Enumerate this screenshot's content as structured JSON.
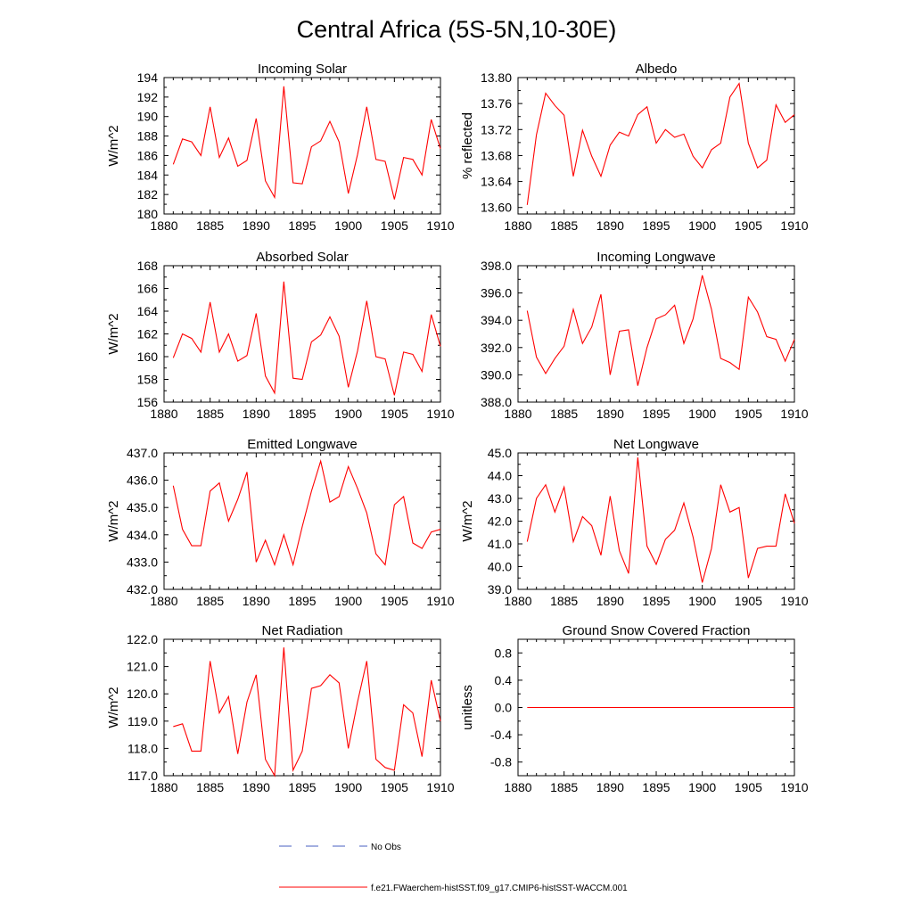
{
  "main_title": "Central Africa (5S-5N,10-30E)",
  "colors": {
    "model_line": "#ff0000",
    "obs_line": "#4a5fc1",
    "axis": "#000000"
  },
  "legend": {
    "obs_label": "No Obs",
    "model_label": "f.e21.FWaerchem-histSST.f09_g17.CMIP6-histSST-WACCM.001"
  },
  "chart_data": [
    {
      "type": "line",
      "title": "Incoming Solar",
      "xlabel": "",
      "ylabel": "W/m^2",
      "xlim": [
        1880,
        1910
      ],
      "ylim": [
        180,
        194
      ],
      "xticks": [
        1880,
        1885,
        1890,
        1895,
        1900,
        1905,
        1910
      ],
      "yticks": [
        180,
        182,
        184,
        186,
        188,
        190,
        192,
        194
      ],
      "ytick_labels": [
        "180",
        "182",
        "184",
        "186",
        "188",
        "190",
        "192",
        "194"
      ],
      "x": [
        1881,
        1882,
        1883,
        1884,
        1885,
        1886,
        1887,
        1888,
        1889,
        1890,
        1891,
        1892,
        1893,
        1894,
        1895,
        1896,
        1897,
        1898,
        1899,
        1900,
        1901,
        1902,
        1903,
        1904,
        1905,
        1906,
        1907,
        1908,
        1909,
        1910
      ],
      "series": [
        {
          "values": [
            185.1,
            187.7,
            187.4,
            186.0,
            191.0,
            185.8,
            187.8,
            184.9,
            185.5,
            189.8,
            183.4,
            181.7,
            193.1,
            183.2,
            183.1,
            186.9,
            187.5,
            189.5,
            187.4,
            182.1,
            186.1,
            191.0,
            185.6,
            185.4,
            181.5,
            185.8,
            185.6,
            184.0,
            189.7,
            186.7
          ]
        }
      ]
    },
    {
      "type": "line",
      "title": "Albedo",
      "xlabel": "",
      "ylabel": "% reflected",
      "xlim": [
        1880,
        1910
      ],
      "ylim": [
        13.59,
        13.8
      ],
      "xticks": [
        1880,
        1885,
        1890,
        1895,
        1900,
        1905,
        1910
      ],
      "yticks": [
        13.6,
        13.64,
        13.68,
        13.72,
        13.76,
        13.8
      ],
      "ytick_labels": [
        "13.60",
        "13.64",
        "13.68",
        "13.72",
        "13.76",
        "13.80"
      ],
      "x": [
        1881,
        1882,
        1883,
        1884,
        1885,
        1886,
        1887,
        1888,
        1889,
        1890,
        1891,
        1892,
        1893,
        1894,
        1895,
        1896,
        1897,
        1898,
        1899,
        1900,
        1901,
        1902,
        1903,
        1904,
        1905,
        1906,
        1907,
        1908,
        1909,
        1910
      ],
      "series": [
        {
          "values": [
            13.604,
            13.712,
            13.776,
            13.757,
            13.742,
            13.648,
            13.719,
            13.679,
            13.648,
            13.696,
            13.716,
            13.71,
            13.743,
            13.755,
            13.699,
            13.72,
            13.708,
            13.713,
            13.679,
            13.661,
            13.689,
            13.699,
            13.77,
            13.791,
            13.699,
            13.661,
            13.673,
            13.758,
            13.731,
            13.743
          ]
        }
      ]
    },
    {
      "type": "line",
      "title": "Absorbed Solar",
      "xlabel": "",
      "ylabel": "W/m^2",
      "xlim": [
        1880,
        1910
      ],
      "ylim": [
        156,
        168
      ],
      "xticks": [
        1880,
        1885,
        1890,
        1895,
        1900,
        1905,
        1910
      ],
      "yticks": [
        156,
        158,
        160,
        162,
        164,
        166,
        168
      ],
      "ytick_labels": [
        "156",
        "158",
        "160",
        "162",
        "164",
        "166",
        "168"
      ],
      "x": [
        1881,
        1882,
        1883,
        1884,
        1885,
        1886,
        1887,
        1888,
        1889,
        1890,
        1891,
        1892,
        1893,
        1894,
        1895,
        1896,
        1897,
        1898,
        1899,
        1900,
        1901,
        1902,
        1903,
        1904,
        1905,
        1906,
        1907,
        1908,
        1909,
        1910
      ],
      "series": [
        {
          "values": [
            159.9,
            162.0,
            161.6,
            160.4,
            164.8,
            160.4,
            162.0,
            159.6,
            160.1,
            163.8,
            158.3,
            156.8,
            166.6,
            158.1,
            158.0,
            161.3,
            161.9,
            163.5,
            161.8,
            157.3,
            160.5,
            164.9,
            160.0,
            159.8,
            156.6,
            160.4,
            160.2,
            158.7,
            163.7,
            160.9
          ]
        }
      ]
    },
    {
      "type": "line",
      "title": "Incoming Longwave",
      "xlabel": "",
      "ylabel": "",
      "xlim": [
        1880,
        1910
      ],
      "ylim": [
        388.0,
        398.0
      ],
      "xticks": [
        1880,
        1885,
        1890,
        1895,
        1900,
        1905,
        1910
      ],
      "yticks": [
        388,
        390,
        392,
        394,
        396,
        398
      ],
      "ytick_labels": [
        "388.0",
        "390.0",
        "392.0",
        "394.0",
        "396.0",
        "398.0"
      ],
      "x": [
        1881,
        1882,
        1883,
        1884,
        1885,
        1886,
        1887,
        1888,
        1889,
        1890,
        1891,
        1892,
        1893,
        1894,
        1895,
        1896,
        1897,
        1898,
        1899,
        1900,
        1901,
        1902,
        1903,
        1904,
        1905,
        1906,
        1907,
        1908,
        1909,
        1910
      ],
      "series": [
        {
          "values": [
            394.7,
            391.3,
            390.1,
            391.2,
            392.1,
            394.8,
            392.3,
            393.5,
            395.9,
            390.0,
            393.2,
            393.3,
            389.2,
            392.0,
            394.1,
            394.4,
            395.1,
            392.3,
            394.1,
            397.3,
            394.8,
            391.2,
            390.9,
            390.4,
            395.7,
            394.6,
            392.8,
            392.6,
            391.0,
            392.6
          ]
        }
      ]
    },
    {
      "type": "line",
      "title": "Emitted Longwave",
      "xlabel": "",
      "ylabel": "W/m^2",
      "xlim": [
        1880,
        1910
      ],
      "ylim": [
        432.0,
        437.0
      ],
      "xticks": [
        1880,
        1885,
        1890,
        1895,
        1900,
        1905,
        1910
      ],
      "yticks": [
        432,
        433,
        434,
        435,
        436,
        437
      ],
      "ytick_labels": [
        "432.0",
        "433.0",
        "434.0",
        "435.0",
        "436.0",
        "437.0"
      ],
      "x": [
        1881,
        1882,
        1883,
        1884,
        1885,
        1886,
        1887,
        1888,
        1889,
        1890,
        1891,
        1892,
        1893,
        1894,
        1895,
        1896,
        1897,
        1898,
        1899,
        1900,
        1901,
        1902,
        1903,
        1904,
        1905,
        1906,
        1907,
        1908,
        1909,
        1910
      ],
      "series": [
        {
          "values": [
            435.8,
            434.2,
            433.6,
            433.6,
            435.6,
            435.9,
            434.5,
            435.3,
            436.3,
            433.0,
            433.8,
            432.9,
            434.0,
            432.9,
            434.3,
            435.6,
            436.7,
            435.2,
            435.4,
            436.5,
            435.7,
            434.8,
            433.3,
            432.9,
            435.1,
            435.4,
            433.7,
            433.5,
            434.1,
            434.2
          ]
        }
      ]
    },
    {
      "type": "line",
      "title": "Net Longwave",
      "xlabel": "",
      "ylabel": "W/m^2",
      "xlim": [
        1880,
        1910
      ],
      "ylim": [
        39.0,
        45.0
      ],
      "xticks": [
        1880,
        1885,
        1890,
        1895,
        1900,
        1905,
        1910
      ],
      "yticks": [
        39,
        40,
        41,
        42,
        43,
        44,
        45
      ],
      "ytick_labels": [
        "39.0",
        "40.0",
        "41.0",
        "42.0",
        "43.0",
        "44.0",
        "45.0"
      ],
      "x": [
        1881,
        1882,
        1883,
        1884,
        1885,
        1886,
        1887,
        1888,
        1889,
        1890,
        1891,
        1892,
        1893,
        1894,
        1895,
        1896,
        1897,
        1898,
        1899,
        1900,
        1901,
        1902,
        1903,
        1904,
        1905,
        1906,
        1907,
        1908,
        1909,
        1910
      ],
      "series": [
        {
          "values": [
            41.1,
            43.0,
            43.6,
            42.4,
            43.5,
            41.1,
            42.2,
            41.8,
            40.5,
            43.1,
            40.7,
            39.7,
            44.8,
            40.9,
            40.1,
            41.2,
            41.6,
            42.8,
            41.3,
            39.3,
            40.8,
            43.6,
            42.4,
            42.6,
            39.5,
            40.8,
            40.9,
            40.9,
            43.2,
            41.9
          ]
        }
      ]
    },
    {
      "type": "line",
      "title": "Net Radiation",
      "xlabel": "",
      "ylabel": "W/m^2",
      "xlim": [
        1880,
        1910
      ],
      "ylim": [
        117.0,
        122.0
      ],
      "xticks": [
        1880,
        1885,
        1890,
        1895,
        1900,
        1905,
        1910
      ],
      "yticks": [
        117,
        118,
        119,
        120,
        121,
        122
      ],
      "ytick_labels": [
        "117.0",
        "118.0",
        "119.0",
        "120.0",
        "121.0",
        "122.0"
      ],
      "x": [
        1881,
        1882,
        1883,
        1884,
        1885,
        1886,
        1887,
        1888,
        1889,
        1890,
        1891,
        1892,
        1893,
        1894,
        1895,
        1896,
        1897,
        1898,
        1899,
        1900,
        1901,
        1902,
        1903,
        1904,
        1905,
        1906,
        1907,
        1908,
        1909,
        1910
      ],
      "series": [
        {
          "values": [
            118.8,
            118.9,
            117.9,
            117.9,
            121.2,
            119.3,
            119.9,
            117.8,
            119.7,
            120.7,
            117.6,
            117.0,
            121.7,
            117.2,
            117.9,
            120.2,
            120.3,
            120.7,
            120.4,
            118.0,
            119.7,
            121.2,
            117.6,
            117.3,
            117.2,
            119.6,
            119.3,
            117.7,
            120.5,
            119.0
          ]
        }
      ]
    },
    {
      "type": "line",
      "title": "Ground Snow Covered Fraction",
      "xlabel": "",
      "ylabel": "unitless",
      "xlim": [
        1880,
        1910
      ],
      "ylim": [
        -1.0,
        1.0
      ],
      "xticks": [
        1880,
        1885,
        1890,
        1895,
        1900,
        1905,
        1910
      ],
      "yticks": [
        -0.8,
        -0.4,
        0.0,
        0.4,
        0.8
      ],
      "ytick_labels": [
        "-0.8",
        "-0.4",
        "0.0",
        "0.4",
        "0.8"
      ],
      "x": [
        1881,
        1882,
        1883,
        1884,
        1885,
        1886,
        1887,
        1888,
        1889,
        1890,
        1891,
        1892,
        1893,
        1894,
        1895,
        1896,
        1897,
        1898,
        1899,
        1900,
        1901,
        1902,
        1903,
        1904,
        1905,
        1906,
        1907,
        1908,
        1909,
        1910
      ],
      "series": [
        {
          "values": [
            0,
            0,
            0,
            0,
            0,
            0,
            0,
            0,
            0,
            0,
            0,
            0,
            0,
            0,
            0,
            0,
            0,
            0,
            0,
            0,
            0,
            0,
            0,
            0,
            0,
            0,
            0,
            0,
            0,
            0
          ]
        }
      ]
    }
  ]
}
